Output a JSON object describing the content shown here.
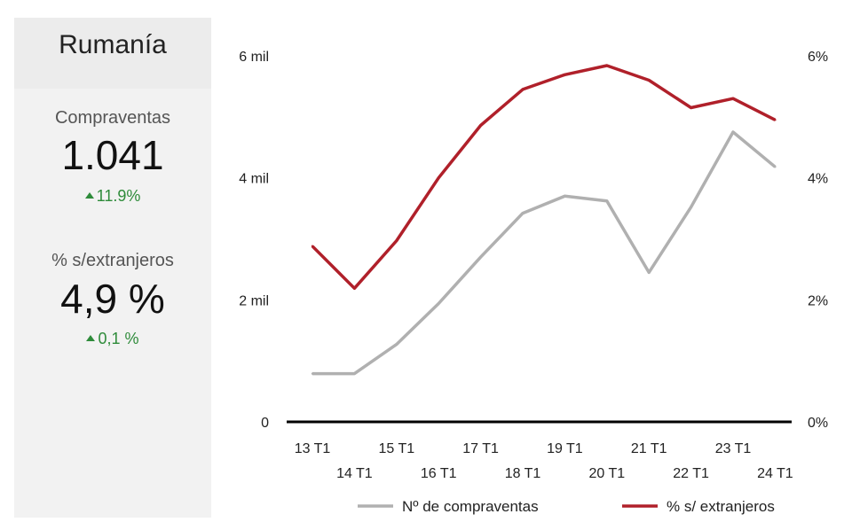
{
  "panel": {
    "country": "Rumanía",
    "kpis": [
      {
        "label": "Compraventas",
        "value": "1.041",
        "change": "11.9%",
        "direction": "up"
      },
      {
        "label": "% s/extranjeros",
        "value": "4,9 %",
        "change": "0,1 %",
        "direction": "up"
      }
    ]
  },
  "colors": {
    "series_count": "#b0b0b0",
    "series_pct": "#b0202a",
    "positive": "#2e8b3a"
  },
  "chart_data": {
    "type": "line",
    "categories": [
      "13 T1",
      "14 T1",
      "15 T1",
      "16 T1",
      "17 T1",
      "18 T1",
      "19 T1",
      "20 T1",
      "21 T1",
      "22 T1",
      "23 T1",
      "24 T1"
    ],
    "y_left": {
      "ticks": [
        "0",
        "2 mil",
        "4 mil",
        "6 mil"
      ],
      "tick_values": [
        0,
        2000,
        4000,
        6000
      ],
      "range": [
        0,
        6000
      ]
    },
    "y_right": {
      "ticks": [
        "0%",
        "2%",
        "4%",
        "6%"
      ],
      "tick_values": [
        0,
        2,
        4,
        6
      ],
      "range": [
        0,
        6
      ]
    },
    "series": [
      {
        "name": "Nº de compraventas",
        "axis": "left",
        "color": "#b0b0b0",
        "values": [
          790,
          790,
          1270,
          1940,
          2700,
          3420,
          3700,
          3620,
          2450,
          3520,
          4750,
          4180
        ]
      },
      {
        "name": "% s/ extranjeros",
        "axis": "right",
        "color": "#b0202a",
        "values": [
          2.88,
          2.19,
          2.97,
          4.0,
          4.86,
          5.45,
          5.69,
          5.84,
          5.6,
          5.15,
          5.3,
          4.95
        ]
      }
    ],
    "legend_position": "bottom-right",
    "grid": false
  }
}
